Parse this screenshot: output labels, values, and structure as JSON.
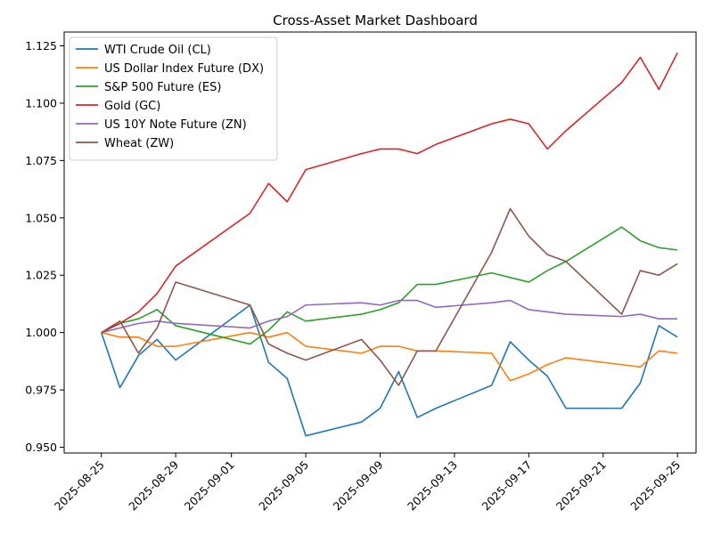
{
  "chart_data": {
    "type": "line",
    "title": "Cross-Asset Market Dashboard",
    "xlabel": "",
    "ylabel": "",
    "x_start": "2025-08-25",
    "x": [
      "2025-08-25",
      "2025-08-26",
      "2025-08-27",
      "2025-08-28",
      "2025-08-29",
      "2025-09-02",
      "2025-09-03",
      "2025-09-04",
      "2025-09-05",
      "2025-09-08",
      "2025-09-09",
      "2025-09-10",
      "2025-09-11",
      "2025-09-12",
      "2025-09-15",
      "2025-09-16",
      "2025-09-17",
      "2025-09-18",
      "2025-09-19",
      "2025-09-22",
      "2025-09-23",
      "2025-09-24",
      "2025-09-25"
    ],
    "xlim": [
      "2025-08-23",
      "2025-09-26"
    ],
    "ylim": [
      0.9475,
      1.131
    ],
    "x_ticks": [
      "2025-08-25",
      "2025-08-29",
      "2025-09-01",
      "2025-09-05",
      "2025-09-09",
      "2025-09-13",
      "2025-09-17",
      "2025-09-21",
      "2025-09-25"
    ],
    "y_ticks": [
      0.95,
      0.975,
      1.0,
      1.025,
      1.05,
      1.075,
      1.1,
      1.125
    ],
    "y_tick_labels": [
      "0.950",
      "0.975",
      "1.000",
      "1.025",
      "1.050",
      "1.075",
      "1.100",
      "1.125"
    ],
    "grid": false,
    "legend_position": "top-left",
    "series": [
      {
        "name": "WTI Crude Oil (CL)",
        "color": "#1f77b4",
        "values": [
          1.0,
          0.976,
          0.99,
          0.997,
          0.988,
          1.012,
          0.987,
          0.98,
          0.955,
          0.961,
          0.967,
          0.983,
          0.963,
          0.967,
          0.977,
          0.996,
          0.988,
          0.981,
          0.967,
          0.967,
          0.978,
          1.003,
          0.998
        ]
      },
      {
        "name": "US Dollar Index Future (DX)",
        "color": "#ff7f0e",
        "values": [
          1.0,
          0.998,
          0.998,
          0.994,
          0.994,
          1.0,
          0.998,
          1.0,
          0.994,
          0.991,
          0.994,
          0.994,
          0.992,
          0.992,
          0.991,
          0.979,
          0.982,
          0.986,
          0.989,
          0.986,
          0.985,
          0.992,
          0.991
        ]
      },
      {
        "name": "S&P 500 Future (ES)",
        "color": "#2ca02c",
        "values": [
          1.0,
          1.004,
          1.006,
          1.01,
          1.003,
          0.995,
          1.001,
          1.009,
          1.005,
          1.008,
          1.01,
          1.013,
          1.021,
          1.021,
          1.026,
          1.024,
          1.022,
          1.027,
          1.031,
          1.046,
          1.04,
          1.037,
          1.036
        ]
      },
      {
        "name": "Gold (GC)",
        "color": "#d62728",
        "values": [
          1.0,
          1.004,
          1.009,
          1.017,
          1.029,
          1.052,
          1.065,
          1.057,
          1.071,
          1.078,
          1.08,
          1.08,
          1.078,
          1.082,
          1.091,
          1.093,
          1.091,
          1.08,
          1.088,
          1.109,
          1.12,
          1.106,
          1.122
        ]
      },
      {
        "name": "US 10Y Note Future (ZN)",
        "color": "#9467bd",
        "values": [
          1.0,
          1.002,
          1.004,
          1.005,
          1.004,
          1.002,
          1.005,
          1.007,
          1.012,
          1.013,
          1.012,
          1.014,
          1.014,
          1.011,
          1.013,
          1.014,
          1.01,
          1.009,
          1.008,
          1.007,
          1.008,
          1.006,
          1.006
        ]
      },
      {
        "name": "Wheat (ZW)",
        "color": "#8c564b",
        "values": [
          1.0,
          1.005,
          0.991,
          1.002,
          1.022,
          1.012,
          0.995,
          0.991,
          0.988,
          0.997,
          0.988,
          0.977,
          0.992,
          0.992,
          1.035,
          1.054,
          1.042,
          1.034,
          1.031,
          1.008,
          1.027,
          1.025,
          1.03
        ]
      }
    ]
  }
}
